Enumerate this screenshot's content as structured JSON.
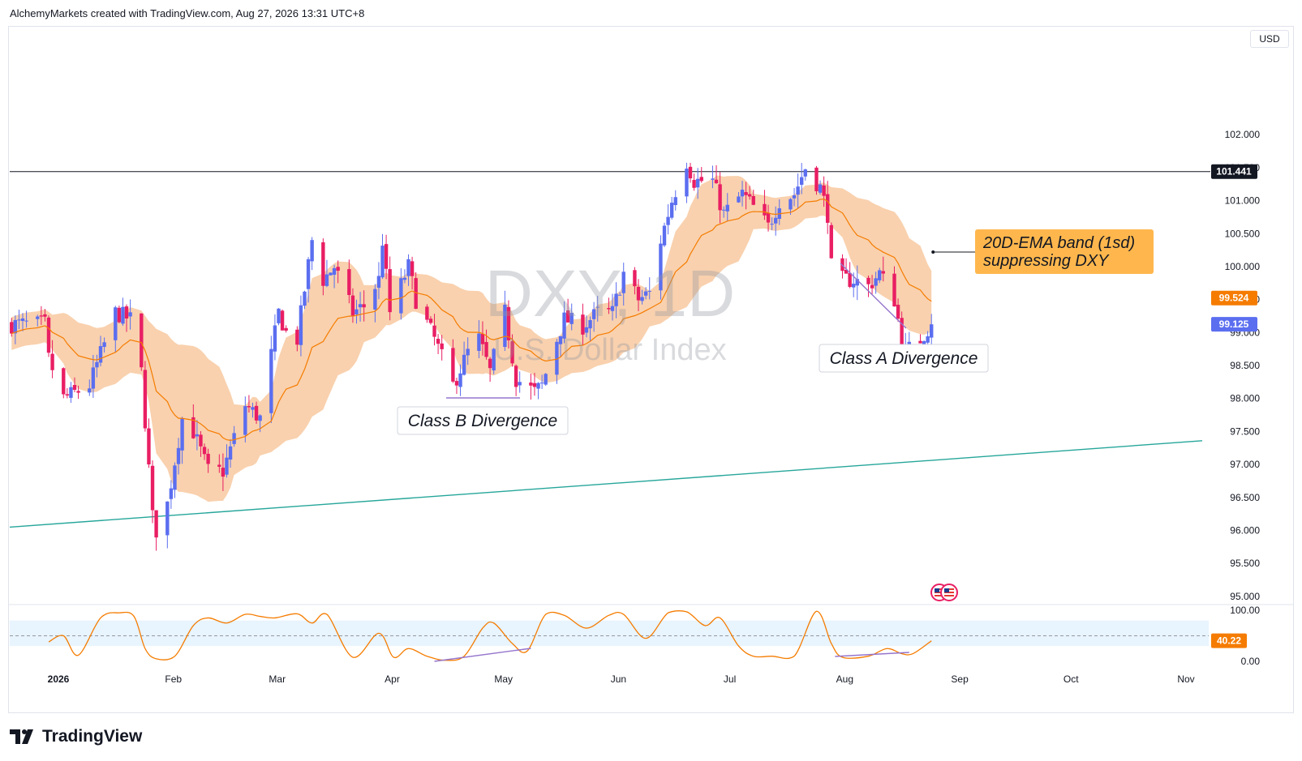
{
  "header": {
    "attribution": "AlchemyMarkets created with TradingView.com, Aug 27, 2026 13:31 UTC+8"
  },
  "brand": {
    "name": "TradingView"
  },
  "price_axis": {
    "currency": "USD"
  },
  "chart_data": [
    {
      "type": "candlestick",
      "watermark": {
        "symbol": "DXY, 1D",
        "name": "U.S. Dollar Index"
      },
      "y_ticks": [
        "95.000",
        "95.500",
        "96.000",
        "96.500",
        "97.000",
        "97.500",
        "98.000",
        "98.500",
        "99.000",
        "99.500",
        "100.000",
        "100.500",
        "101.000",
        "101.500",
        "102.000"
      ],
      "ylim": [
        94.9,
        103.6
      ],
      "x_ticks": [
        "2026",
        "Feb",
        "Mar",
        "Apr",
        "May",
        "Jun",
        "Jul",
        "Aug",
        "Sep",
        "Oct",
        "Nov"
      ],
      "price_labels": {
        "resistance": {
          "value": 101.441,
          "label": "101.441",
          "color": "#131722"
        },
        "ema": {
          "value": 99.524,
          "label": "99.524",
          "color": "#f57c00"
        },
        "last": {
          "value": 99.125,
          "label": "99.125",
          "color": "#5b6ef0"
        }
      },
      "colors": {
        "up": "#5b6ef0",
        "down": "#e91e63",
        "band": "#f8c9a0",
        "ema": "#f57c00",
        "trendline": "#26a69a",
        "divergence": "#9575cd"
      },
      "trendline": {
        "start": {
          "date": "2026-01-01",
          "value": 96.05
        },
        "end": {
          "date": "2026-11-08",
          "value": 97.36
        }
      },
      "annotations": [
        {
          "text": "Class B Divergence"
        },
        {
          "text": "Class A Divergence"
        },
        {
          "text": "20D-EMA band (1sd)\nsuppressing DXY"
        }
      ],
      "series": [
        {
          "name": "DXY",
          "kind": "ohlc",
          "anchors": [
            {
              "date": "2026-01-01",
              "close": 98.6
            },
            {
              "date": "2026-01-05",
              "close": 98.0
            },
            {
              "date": "2026-01-12",
              "close": 98.2
            },
            {
              "date": "2026-01-19",
              "close": 99.3
            },
            {
              "date": "2026-01-23",
              "close": 99.2
            },
            {
              "date": "2026-01-26",
              "close": 98.4
            },
            {
              "date": "2026-01-29",
              "close": 96.2
            },
            {
              "date": "2026-01-30",
              "close": 96.0
            },
            {
              "date": "2026-02-02",
              "close": 96.4
            },
            {
              "date": "2026-02-06",
              "close": 97.7
            },
            {
              "date": "2026-02-09",
              "close": 97.5
            },
            {
              "date": "2026-02-13",
              "close": 96.9
            },
            {
              "date": "2026-02-17",
              "close": 96.9
            },
            {
              "date": "2026-02-23",
              "close": 97.9
            },
            {
              "date": "2026-02-27",
              "close": 97.7
            },
            {
              "date": "2026-03-04",
              "close": 99.3
            },
            {
              "date": "2026-03-06",
              "close": 99.0
            },
            {
              "date": "2026-03-09",
              "close": 98.9
            },
            {
              "date": "2026-03-13",
              "close": 100.4
            },
            {
              "date": "2026-03-16",
              "close": 99.8
            },
            {
              "date": "2026-03-19",
              "close": 100.0
            },
            {
              "date": "2026-03-24",
              "close": 99.3
            },
            {
              "date": "2026-03-27",
              "close": 99.4
            },
            {
              "date": "2026-03-31",
              "close": 99.8
            },
            {
              "date": "2026-04-01",
              "close": 100.4
            },
            {
              "date": "2026-04-03",
              "close": 99.3
            },
            {
              "date": "2026-04-08",
              "close": 100.0
            },
            {
              "date": "2026-04-10",
              "close": 99.5
            },
            {
              "date": "2026-04-15",
              "close": 98.9
            },
            {
              "date": "2026-04-20",
              "close": 98.2
            },
            {
              "date": "2026-04-24",
              "close": 98.7
            },
            {
              "date": "2026-04-27",
              "close": 98.9
            },
            {
              "date": "2026-04-30",
              "close": 98.4
            },
            {
              "date": "2026-05-04",
              "close": 99.3
            },
            {
              "date": "2026-05-07",
              "close": 98.3
            },
            {
              "date": "2026-05-12",
              "close": 98.1
            },
            {
              "date": "2026-05-14",
              "close": 98.2
            },
            {
              "date": "2026-05-18",
              "close": 98.9
            },
            {
              "date": "2026-05-20",
              "close": 99.2
            },
            {
              "date": "2026-05-25",
              "close": 99.1
            },
            {
              "date": "2026-05-29",
              "close": 99.3
            },
            {
              "date": "2026-06-02",
              "close": 99.3
            },
            {
              "date": "2026-06-05",
              "close": 99.9
            },
            {
              "date": "2026-06-09",
              "close": 99.5
            },
            {
              "date": "2026-06-12",
              "close": 99.6
            },
            {
              "date": "2026-06-15",
              "close": 100.4
            },
            {
              "date": "2026-06-18",
              "close": 101.0
            },
            {
              "date": "2026-06-22",
              "close": 101.6
            },
            {
              "date": "2026-06-24",
              "close": 101.3
            },
            {
              "date": "2026-06-29",
              "close": 101.3
            },
            {
              "date": "2026-07-02",
              "close": 100.8
            },
            {
              "date": "2026-07-07",
              "close": 101.1
            },
            {
              "date": "2026-07-10",
              "close": 100.9
            },
            {
              "date": "2026-07-14",
              "close": 100.6
            },
            {
              "date": "2026-07-17",
              "close": 101.0
            },
            {
              "date": "2026-07-21",
              "close": 101.1
            },
            {
              "date": "2026-07-24",
              "close": 101.5
            },
            {
              "date": "2026-07-28",
              "close": 101.2
            },
            {
              "date": "2026-07-30",
              "close": 100.8
            },
            {
              "date": "2026-07-31",
              "close": 100.0
            },
            {
              "date": "2026-08-03",
              "close": 99.8
            },
            {
              "date": "2026-08-06",
              "close": 99.8
            },
            {
              "date": "2026-08-10",
              "close": 99.7
            },
            {
              "date": "2026-08-13",
              "close": 99.9
            },
            {
              "date": "2026-08-17",
              "close": 99.5
            },
            {
              "date": "2026-08-19",
              "close": 98.9
            },
            {
              "date": "2026-08-20",
              "close": 98.7
            },
            {
              "date": "2026-08-24",
              "close": 98.9
            },
            {
              "date": "2026-08-27",
              "close": 99.125
            }
          ]
        },
        {
          "name": "20D-EMA",
          "kind": "line"
        },
        {
          "name": "20D-EMA band (1sd)",
          "kind": "band"
        }
      ]
    },
    {
      "type": "line",
      "y_ticks": [
        "0.00",
        "100.00"
      ],
      "ylim": [
        0,
        100
      ],
      "zone": [
        30,
        80
      ],
      "midline": 50,
      "last": {
        "value": 40.22,
        "label": "40.22"
      },
      "series": [
        {
          "kind": "oscillator",
          "anchors": [
            {
              "date": "2026-01-01",
              "value": 38
            },
            {
              "date": "2026-01-05",
              "value": 50
            },
            {
              "date": "2026-01-09",
              "value": 12
            },
            {
              "date": "2026-01-15",
              "value": 85
            },
            {
              "date": "2026-01-20",
              "value": 95
            },
            {
              "date": "2026-01-24",
              "value": 88
            },
            {
              "date": "2026-01-27",
              "value": 25
            },
            {
              "date": "2026-01-30",
              "value": 5
            },
            {
              "date": "2026-02-04",
              "value": 10
            },
            {
              "date": "2026-02-09",
              "value": 70
            },
            {
              "date": "2026-02-13",
              "value": 85
            },
            {
              "date": "2026-02-18",
              "value": 75
            },
            {
              "date": "2026-02-23",
              "value": 92
            },
            {
              "date": "2026-02-27",
              "value": 88
            },
            {
              "date": "2026-03-03",
              "value": 85
            },
            {
              "date": "2026-03-09",
              "value": 93
            },
            {
              "date": "2026-03-13",
              "value": 75
            },
            {
              "date": "2026-03-17",
              "value": 92
            },
            {
              "date": "2026-03-24",
              "value": 8
            },
            {
              "date": "2026-03-31",
              "value": 55
            },
            {
              "date": "2026-04-04",
              "value": 8
            },
            {
              "date": "2026-04-08",
              "value": 25
            },
            {
              "date": "2026-04-13",
              "value": 10
            },
            {
              "date": "2026-04-18",
              "value": 2
            },
            {
              "date": "2026-04-23",
              "value": 10
            },
            {
              "date": "2026-04-28",
              "value": 65
            },
            {
              "date": "2026-05-01",
              "value": 75
            },
            {
              "date": "2026-05-06",
              "value": 35
            },
            {
              "date": "2026-05-10",
              "value": 20
            },
            {
              "date": "2026-05-15",
              "value": 92
            },
            {
              "date": "2026-05-20",
              "value": 90
            },
            {
              "date": "2026-05-26",
              "value": 65
            },
            {
              "date": "2026-06-01",
              "value": 90
            },
            {
              "date": "2026-06-05",
              "value": 92
            },
            {
              "date": "2026-06-11",
              "value": 45
            },
            {
              "date": "2026-06-17",
              "value": 95
            },
            {
              "date": "2026-06-22",
              "value": 97
            },
            {
              "date": "2026-06-27",
              "value": 70
            },
            {
              "date": "2026-07-01",
              "value": 85
            },
            {
              "date": "2026-07-06",
              "value": 30
            },
            {
              "date": "2026-07-10",
              "value": 10
            },
            {
              "date": "2026-07-15",
              "value": 10
            },
            {
              "date": "2026-07-21",
              "value": 10
            },
            {
              "date": "2026-07-27",
              "value": 98
            },
            {
              "date": "2026-07-31",
              "value": 35
            },
            {
              "date": "2026-08-03",
              "value": 8
            },
            {
              "date": "2026-08-10",
              "value": 10
            },
            {
              "date": "2026-08-15",
              "value": 25
            },
            {
              "date": "2026-08-19",
              "value": 15
            },
            {
              "date": "2026-08-22",
              "value": 15
            },
            {
              "date": "2026-08-27",
              "value": 40.22
            }
          ]
        }
      ]
    }
  ]
}
